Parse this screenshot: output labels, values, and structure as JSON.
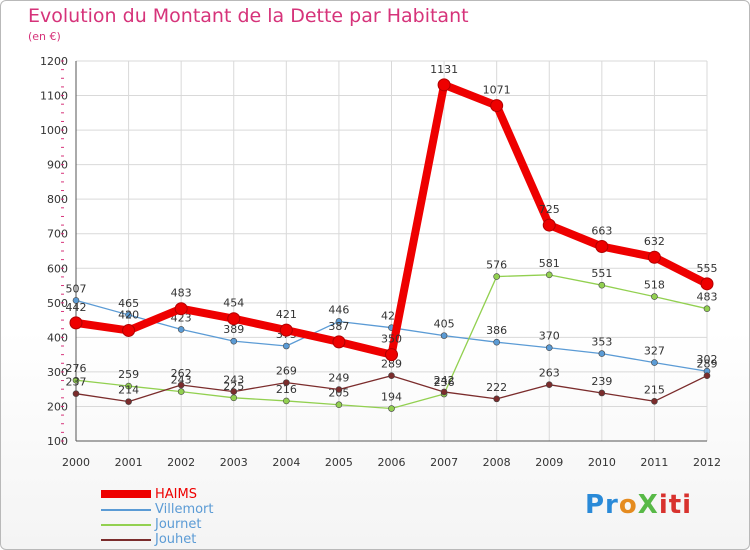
{
  "title": "Evolution du Montant de la Dette par Habitant",
  "subtitle": "(en €)",
  "logo": {
    "text": "Proxiti",
    "parts": [
      "Pr",
      "o",
      "X",
      "iti"
    ]
  },
  "colors": {
    "title": "#d6337a",
    "HAIMS": "#ee0000",
    "Villemort": "#5b9bd5",
    "Journet": "#92d050",
    "Jouhet": "#7b2c2c",
    "grid": "#d9d9d9",
    "axis": "#555555"
  },
  "chart_data": {
    "type": "line",
    "title": "Evolution du Montant de la Dette par Habitant",
    "ylabel": "(en €)",
    "xlabel": "",
    "ylim": [
      100,
      1200
    ],
    "yticks": [
      100,
      200,
      300,
      400,
      500,
      600,
      700,
      800,
      900,
      1000,
      1100,
      1200
    ],
    "grid": true,
    "legend": "bottom-left",
    "x": [
      "2000",
      "2001",
      "2002",
      "2003",
      "2004",
      "2005",
      "2006",
      "2007",
      "2008",
      "2009",
      "2010",
      "2011",
      "2012"
    ],
    "series": [
      {
        "name": "HAIMS",
        "values": [
          442,
          420,
          483,
          454,
          421,
          387,
          350,
          1131,
          1071,
          725,
          663,
          632,
          555
        ]
      },
      {
        "name": "Villemort",
        "values": [
          507,
          465,
          423,
          389,
          375,
          446,
          428,
          405,
          386,
          370,
          353,
          327,
          302
        ]
      },
      {
        "name": "Journet",
        "values": [
          276,
          259,
          243,
          225,
          216,
          205,
          194,
          236,
          576,
          581,
          551,
          518,
          483
        ]
      },
      {
        "name": "Jouhet",
        "values": [
          237,
          214,
          262,
          243,
          269,
          249,
          289,
          242,
          222,
          263,
          239,
          215,
          289
        ]
      }
    ]
  }
}
